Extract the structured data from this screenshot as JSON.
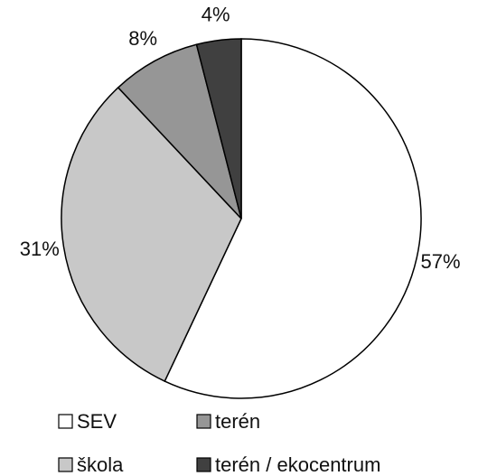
{
  "chart_data": {
    "type": "pie",
    "categories": [
      "SEV",
      "škola",
      "terén",
      "terén / ekocentrum"
    ],
    "values": [
      57,
      31,
      8,
      4
    ],
    "value_labels": [
      "57%",
      "31%",
      "8%",
      "4%"
    ],
    "colors": [
      "#ffffff",
      "#c8c8c8",
      "#969696",
      "#404040"
    ]
  }
}
